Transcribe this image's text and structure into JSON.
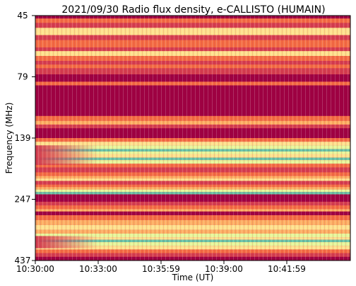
{
  "chart_data": {
    "type": "heatmap",
    "title": "2021/09/30  Radio flux density, e-CALLISTO (HUMAIN)",
    "xlabel": "Time (UT)",
    "ylabel": "Frequency (MHz)",
    "x_ticks": [
      "10:30:00",
      "10:33:00",
      "10:35:59",
      "10:39:00",
      "10:41:59"
    ],
    "y_ticks": [
      "45",
      "79",
      "139",
      "247",
      "437"
    ],
    "colormap": "Spectral",
    "colors": {
      "low": "#9e0142",
      "mid_low": "#d53e4f",
      "mid": "#f46d43",
      "mid_high": "#fdae61",
      "high": "#fee08b",
      "higher": "#e6f598",
      "peak": "#66c2a5",
      "max": "#3288bd"
    },
    "bands": [
      {
        "f_from": 45,
        "f_to": 79,
        "level": "mixed-high"
      },
      {
        "f_from": 79,
        "f_to": 139,
        "level": "low"
      },
      {
        "f_from": 139,
        "f_to": 185,
        "level": "peak"
      },
      {
        "f_from": 185,
        "f_to": 247,
        "level": "mixed"
      },
      {
        "f_from": 247,
        "f_to": 300,
        "level": "low"
      },
      {
        "f_from": 300,
        "f_to": 437,
        "level": "peak"
      }
    ]
  }
}
